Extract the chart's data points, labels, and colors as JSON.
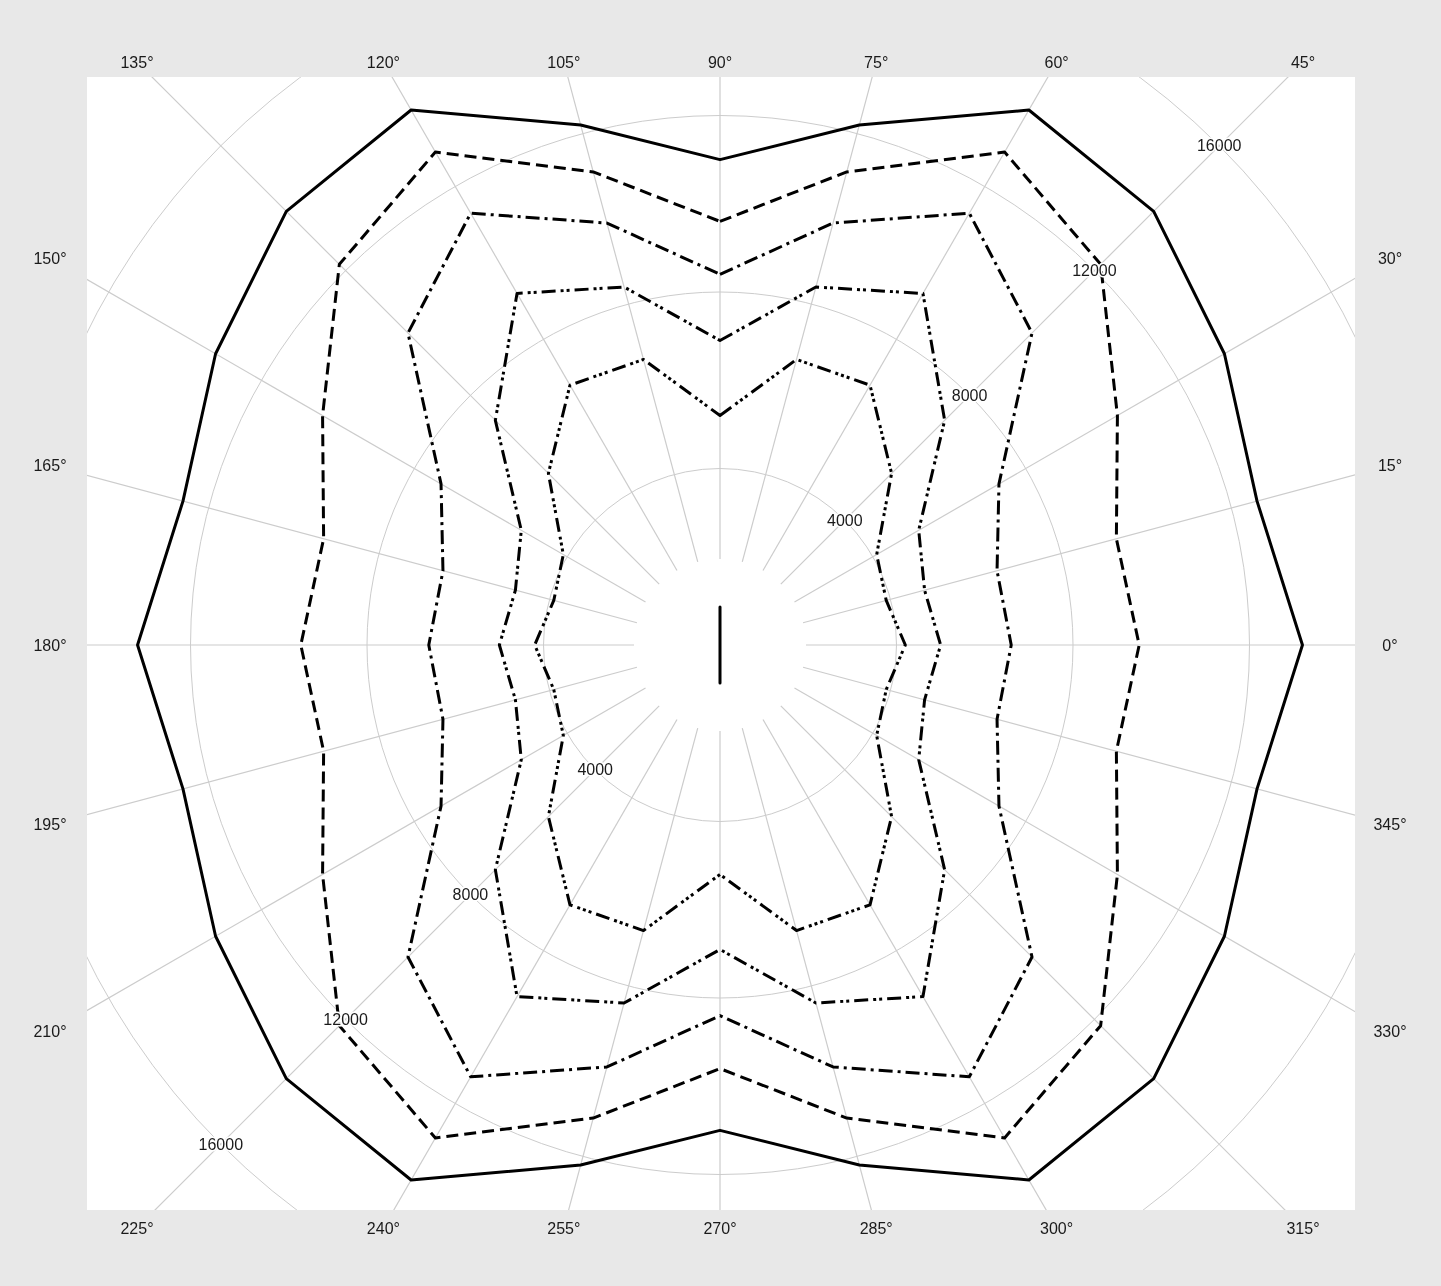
{
  "chart_data": {
    "type": "radar",
    "categories": [
      "90°",
      "75°",
      "60°",
      "45°",
      "30°",
      "15°",
      "0°",
      "345°",
      "330°",
      "315°",
      "300°",
      "285°",
      "270°",
      "255°",
      "240°",
      "225°",
      "210°",
      "195°",
      "180°",
      "165°",
      "150°",
      "135°",
      "120°",
      "105°"
    ],
    "ylim": [
      0,
      16000
    ],
    "yticks": [
      4000,
      8000,
      12000,
      16000,
      4000,
      8000,
      12000,
      16000
    ],
    "grid": true,
    "series": [
      {
        "color": "#000000",
        "line_style": "solid",
        "values": [
          11000,
          12200,
          14000,
          13900,
          13200,
          12600,
          13200,
          12600,
          13200,
          13900,
          14000,
          12200,
          11000,
          12200,
          14000,
          13900,
          13200,
          12600,
          13200,
          12600,
          13200,
          13900,
          14000,
          12200
        ]
      },
      {
        "color": "#000000",
        "line_style": "dashed",
        "values": [
          9600,
          11100,
          12900,
          12200,
          10400,
          9300,
          9500,
          9300,
          10400,
          12200,
          12900,
          11100,
          9600,
          11100,
          12900,
          12200,
          10400,
          9300,
          9500,
          9300,
          10400,
          12200,
          12900,
          11100
        ]
      },
      {
        "color": "#000000",
        "line_style": "dotdash",
        "values": [
          8400,
          9900,
          11300,
          10000,
          7300,
          6500,
          6600,
          6500,
          7300,
          10000,
          11300,
          9900,
          8400,
          9900,
          11300,
          10000,
          7300,
          6500,
          6600,
          6500,
          7300,
          10000,
          11300,
          9900
        ]
      },
      {
        "color": "#000000",
        "line_style": "twodash",
        "values": [
          6900,
          8400,
          9200,
          7200,
          5200,
          4800,
          5000,
          4800,
          5200,
          7200,
          9200,
          8400,
          6900,
          8400,
          9200,
          7200,
          5200,
          4800,
          5000,
          4800,
          5200,
          7200,
          9200,
          8400
        ]
      },
      {
        "color": "#000000",
        "line_style": "longdash",
        "values": [
          5200,
          6700,
          6800,
          5500,
          4100,
          3900,
          4200,
          3900,
          4100,
          5500,
          6800,
          6700,
          5200,
          6700,
          6800,
          5500,
          4100,
          3900,
          4200,
          3900,
          4100,
          5500,
          6800,
          6700
        ]
      },
      {
        "color": "#000000",
        "line_style": "solid",
        "values": [
          860,
          0,
          0,
          0,
          0,
          0,
          0,
          0,
          0,
          0,
          0,
          0,
          860,
          0,
          0,
          0,
          0,
          0,
          0,
          0,
          0,
          0,
          0,
          0
        ]
      }
    ]
  }
}
